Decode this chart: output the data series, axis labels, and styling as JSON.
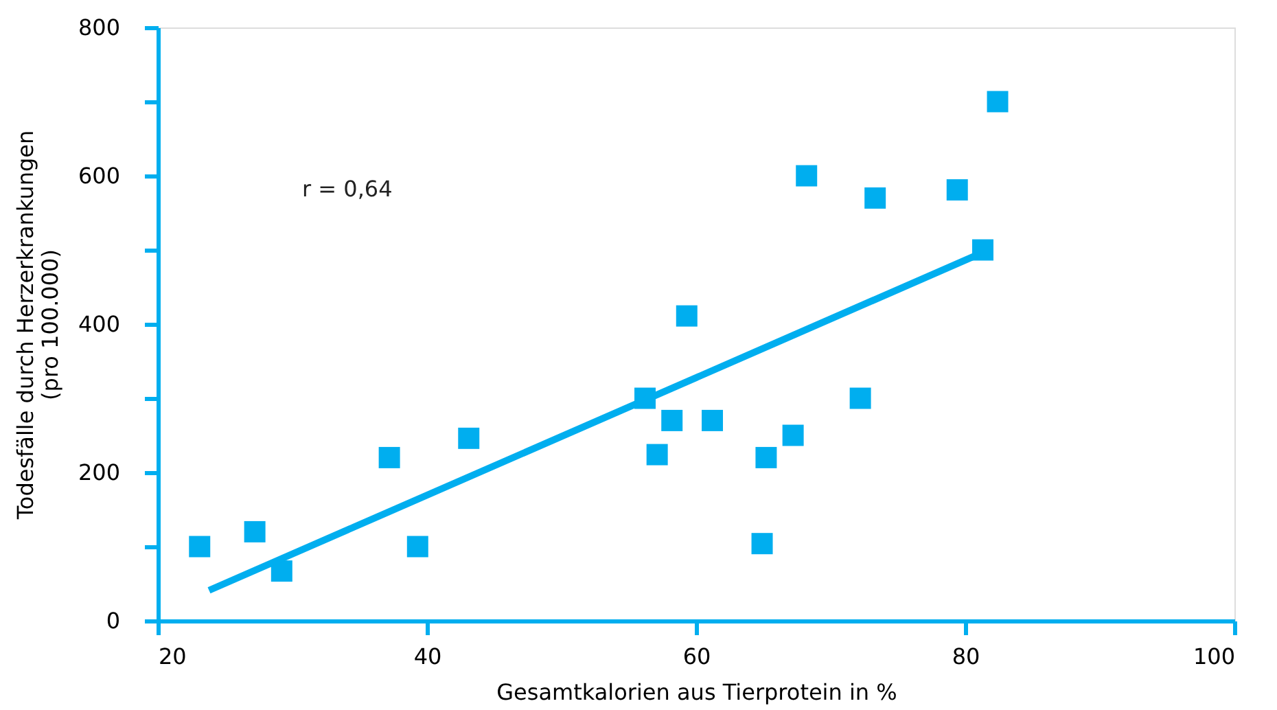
{
  "chart_data": {
    "type": "scatter",
    "xlabel": "Gesamtkalorien aus Tierprotein in %",
    "ylabel": "Todesfälle durch Herzerkrankungen\n(pro 100.000)",
    "xlim": [
      20,
      100
    ],
    "ylim": [
      0,
      800
    ],
    "xticks": [
      20,
      40,
      60,
      80,
      100
    ],
    "yticks": [
      0,
      {
        "value": 100,
        "label": null
      },
      200,
      {
        "value": 300,
        "label": null
      },
      400,
      {
        "value": 500,
        "label": null
      },
      600,
      {
        "value": 700,
        "label": null
      },
      800
    ],
    "grid": false,
    "legend": false,
    "marker": "square",
    "annotations": [
      "r = 0,64"
    ],
    "series": [
      {
        "color": "#00aeef",
        "x": [
          23.1,
          27.2,
          29.2,
          37.2,
          39.3,
          43.1,
          56.2,
          57.1,
          58.2,
          59.3,
          61.2,
          64.9,
          65.2,
          67.2,
          68.2,
          72.2,
          73.3,
          79.4,
          81.3,
          82.4
        ],
        "values": [
          100,
          120,
          67,
          220,
          100,
          246,
          300,
          224,
          270,
          411,
          270,
          104,
          220,
          250,
          600,
          300,
          570,
          581,
          500,
          700
        ]
      },
      {
        "type": "line",
        "color": "#00aeef",
        "marker": "none",
        "x": [
          23.8,
          81.1
        ],
        "values": [
          41,
          495
        ]
      }
    ]
  }
}
